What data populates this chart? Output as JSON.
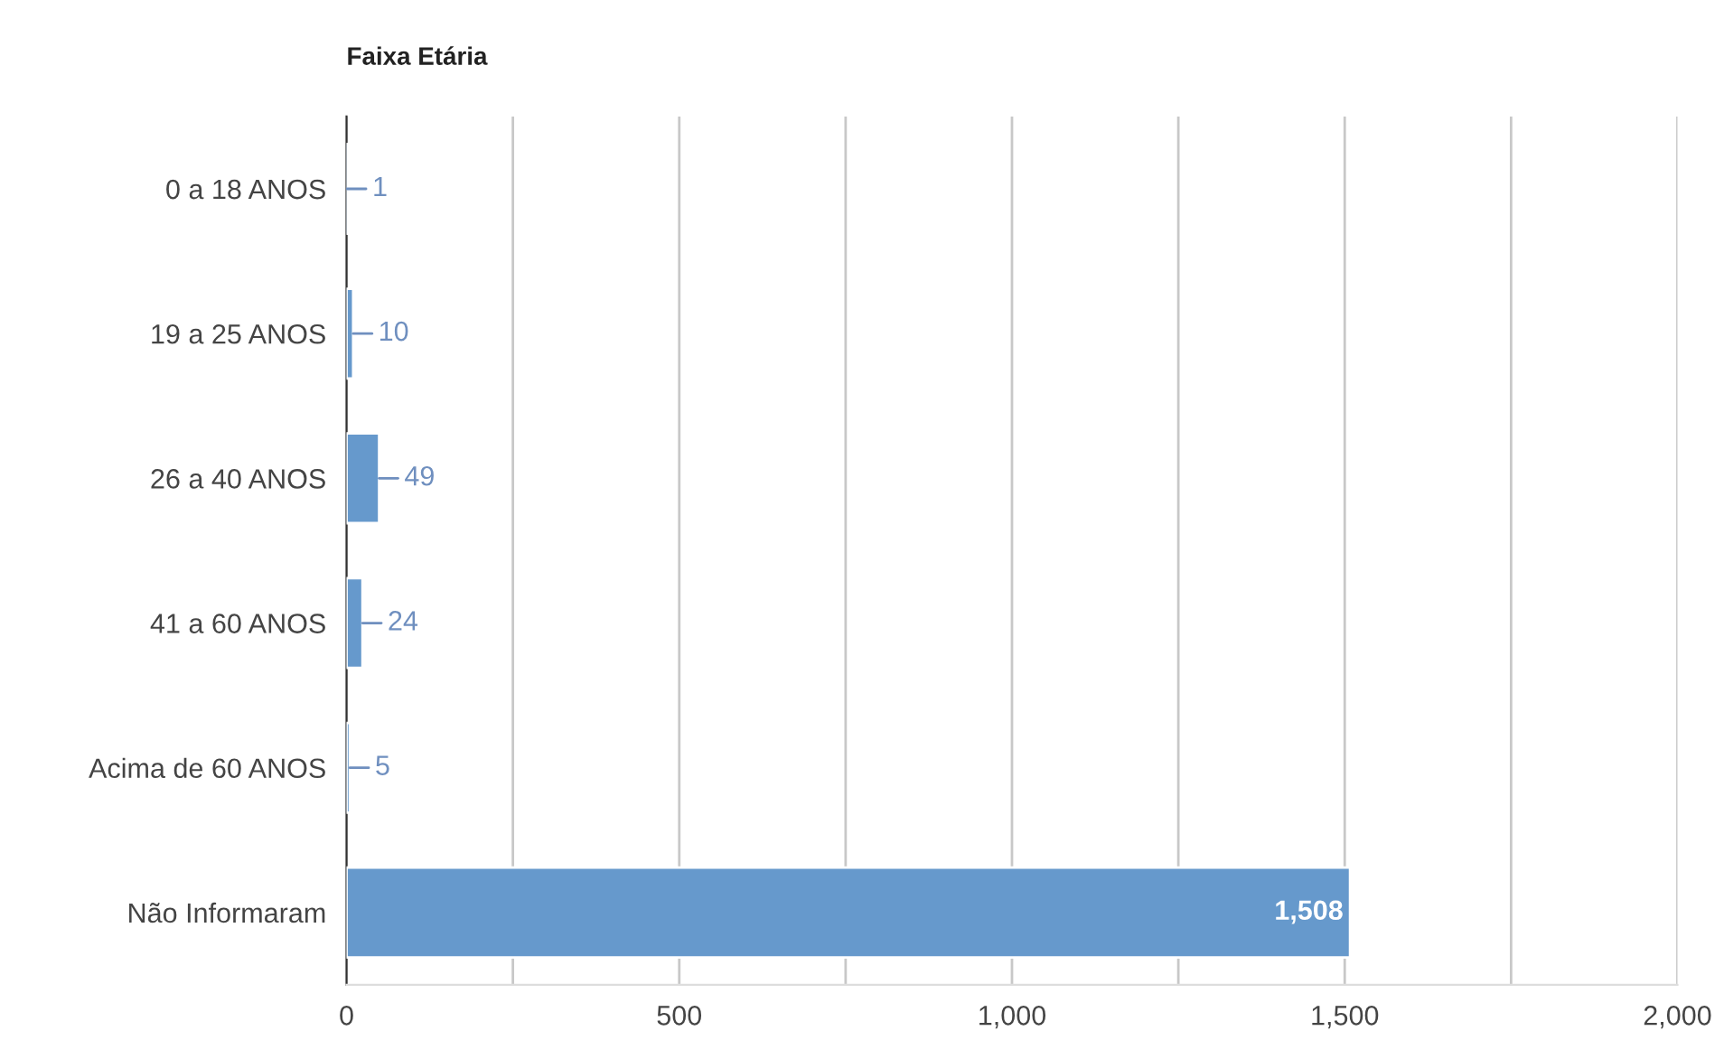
{
  "chart_data": {
    "type": "bar",
    "orientation": "horizontal",
    "title": "Faixa Etária",
    "categories": [
      "0 a 18 ANOS",
      "19 a 25 ANOS",
      "26 a 40 ANOS",
      "41 a 60 ANOS",
      "Acima de 60 ANOS",
      "Não Informaram"
    ],
    "values": [
      1,
      10,
      49,
      24,
      5,
      1508
    ],
    "value_labels": [
      "1",
      "10",
      "49",
      "24",
      "5",
      "1,508"
    ],
    "color": "#6699cc",
    "xlim": [
      0,
      2000
    ],
    "xticks": [
      0,
      {
        "value": 250,
        "label": null
      },
      500,
      {
        "value": 750,
        "label": null
      },
      {
        "value": 1000,
        "label": "1,000"
      },
      {
        "value": 1250,
        "label": null
      },
      {
        "value": 1500,
        "label": "1,500"
      },
      {
        "value": 1750,
        "label": null
      },
      {
        "value": 2000,
        "label": "2,000"
      }
    ],
    "grid": "x",
    "legend": false
  }
}
